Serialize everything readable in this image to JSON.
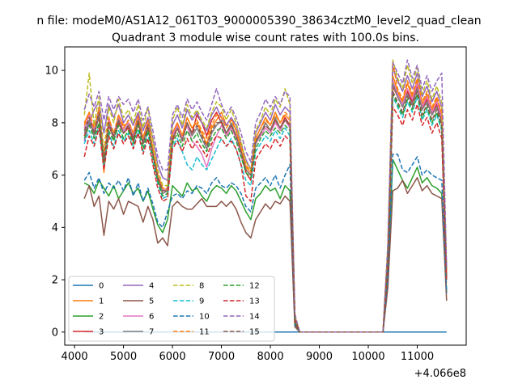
{
  "figure": {
    "suptitle": "n file: modeM0/AS1A12_061T03_9000005390_38634cztM0_level2_quad_clean",
    "title": "Quadrant 3 module wise count rates with 100.0s bins."
  },
  "chart_data": {
    "type": "line",
    "title": "Quadrant 3 module wise count rates with 100.0s bins.",
    "xlabel": "",
    "ylabel": "",
    "x_offset_label": "+4.066e8",
    "xlim": [
      3800,
      12000
    ],
    "ylim": [
      -0.5,
      10.9
    ],
    "xticks": [
      4000,
      5000,
      6000,
      7000,
      8000,
      9000,
      10000,
      11000
    ],
    "xtick_labels": [
      "4000",
      "5000",
      "6000",
      "7000",
      "8000",
      "9000",
      "10000",
      "11000"
    ],
    "yticks": [
      0,
      2,
      4,
      6,
      8,
      10
    ],
    "ytick_labels": [
      "0",
      "2",
      "4",
      "6",
      "8",
      "10"
    ],
    "grid": false,
    "legend_position": "lower-left",
    "legend_columns": 4,
    "x": [
      4200,
      4300,
      4400,
      4500,
      4600,
      4700,
      4800,
      4900,
      5000,
      5100,
      5200,
      5300,
      5400,
      5500,
      5600,
      5700,
      5800,
      5900,
      6000,
      6100,
      6200,
      6300,
      6400,
      6500,
      6600,
      6700,
      6800,
      6900,
      7000,
      7100,
      7200,
      7300,
      7400,
      7500,
      7600,
      7700,
      7800,
      7900,
      8000,
      8100,
      8200,
      8300,
      8400,
      8500,
      8600,
      10300,
      10400,
      10500,
      10600,
      10700,
      10800,
      10900,
      11000,
      11100,
      11200,
      11300,
      11400,
      11500,
      11600
    ],
    "series": [
      {
        "name": "0",
        "color": "#1f77b4",
        "dash": "solid",
        "values": [
          0,
          0,
          0,
          0,
          0,
          0,
          0,
          0,
          0,
          0,
          0,
          0,
          0,
          0,
          0,
          0,
          0,
          0,
          0,
          0,
          0,
          0,
          0,
          0,
          0,
          0,
          0,
          0,
          0,
          0,
          0,
          0,
          0,
          0,
          0,
          0,
          0,
          0,
          0,
          0,
          0,
          0,
          0,
          0,
          0,
          0,
          0,
          0,
          0,
          0,
          0,
          0,
          0,
          0,
          0,
          0,
          0,
          0,
          0
        ]
      },
      {
        "name": "1",
        "color": "#ff7f0e",
        "dash": "solid",
        "values": [
          8.0,
          8.4,
          7.6,
          8.6,
          6.1,
          8.2,
          7.5,
          8.3,
          7.9,
          8.0,
          7.6,
          8.3,
          7.4,
          8.1,
          7.0,
          6.0,
          5.5,
          5.4,
          7.6,
          8.0,
          7.5,
          8.2,
          7.8,
          8.0,
          7.6,
          7.2,
          7.8,
          8.1,
          8.4,
          7.9,
          8.2,
          7.7,
          7.0,
          6.3,
          6.1,
          7.4,
          7.8,
          8.2,
          7.9,
          8.4,
          8.0,
          8.3,
          8.1,
          0.6,
          0,
          0,
          3.0,
          9.8,
          9.2,
          8.8,
          9.5,
          9.0,
          9.6,
          8.7,
          9.1,
          8.5,
          8.9,
          8.3,
          2.2
        ]
      },
      {
        "name": "2",
        "color": "#2ca02c",
        "dash": "solid",
        "values": [
          5.7,
          5.6,
          5.3,
          5.8,
          5.5,
          5.2,
          5.6,
          5.1,
          5.4,
          5.7,
          5.3,
          5.5,
          5.0,
          5.4,
          4.7,
          4.1,
          3.8,
          4.3,
          5.6,
          5.4,
          5.2,
          5.7,
          5.4,
          5.5,
          5.2,
          5.0,
          5.4,
          5.6,
          5.5,
          5.3,
          5.6,
          5.4,
          5.0,
          4.6,
          4.3,
          5.1,
          5.3,
          5.6,
          5.4,
          5.5,
          5.1,
          5.6,
          5.4,
          0.3,
          0,
          0,
          2.0,
          6.6,
          6.2,
          5.8,
          5.5,
          5.9,
          6.3,
          5.7,
          5.9,
          5.6,
          5.5,
          5.3,
          1.5
        ]
      },
      {
        "name": "3",
        "color": "#d62728",
        "dash": "solid",
        "values": [
          7.5,
          8.0,
          7.6,
          8.2,
          6.5,
          7.9,
          7.4,
          8.0,
          7.6,
          7.8,
          7.3,
          8.0,
          7.2,
          7.8,
          6.8,
          5.8,
          5.3,
          5.4,
          7.3,
          7.8,
          7.4,
          8.0,
          7.6,
          8.3,
          8.0,
          7.5,
          8.1,
          8.4,
          8.0,
          7.6,
          7.9,
          7.5,
          6.8,
          6.1,
          5.8,
          7.3,
          7.6,
          8.0,
          7.7,
          8.1,
          7.8,
          8.2,
          7.9,
          0.5,
          0,
          0,
          2.8,
          9.4,
          9.0,
          8.6,
          9.2,
          8.8,
          9.4,
          8.5,
          8.9,
          8.3,
          8.7,
          8.1,
          2.1
        ]
      },
      {
        "name": "4",
        "color": "#9467bd",
        "dash": "solid",
        "values": [
          7.3,
          8.0,
          8.5,
          8.8,
          7.6,
          8.7,
          8.2,
          8.7,
          8.0,
          8.3,
          7.9,
          8.4,
          7.7,
          8.2,
          7.4,
          6.4,
          5.9,
          5.8,
          7.9,
          8.3,
          7.8,
          8.5,
          8.1,
          8.4,
          8.0,
          7.7,
          8.3,
          8.6,
          8.2,
          7.9,
          8.2,
          7.9,
          7.2,
          6.6,
          6.2,
          7.6,
          8.0,
          8.4,
          8.1,
          8.7,
          8.3,
          8.6,
          8.4,
          0.6,
          0,
          0,
          3.2,
          10.1,
          9.6,
          9.2,
          9.8,
          9.3,
          9.9,
          9.0,
          9.4,
          8.8,
          9.2,
          8.6,
          2.3
        ]
      },
      {
        "name": "5",
        "color": "#8c564b",
        "dash": "solid",
        "values": [
          5.1,
          5.6,
          4.8,
          5.2,
          3.7,
          5.0,
          4.7,
          5.1,
          4.5,
          5.0,
          4.9,
          4.8,
          4.2,
          4.8,
          4.3,
          3.4,
          3.6,
          3.3,
          4.8,
          5.0,
          4.8,
          4.7,
          4.7,
          4.9,
          5.1,
          4.8,
          4.8,
          4.8,
          5.0,
          4.8,
          5.0,
          4.7,
          4.2,
          3.8,
          3.6,
          4.3,
          4.6,
          4.9,
          4.7,
          5.0,
          4.9,
          5.2,
          5.0,
          0.2,
          0,
          0,
          1.7,
          5.4,
          5.5,
          5.8,
          5.3,
          5.6,
          5.9,
          5.4,
          5.6,
          5.3,
          5.2,
          5.1,
          1.2
        ]
      },
      {
        "name": "6",
        "color": "#e377c2",
        "dash": "solid",
        "values": [
          7.8,
          8.3,
          7.7,
          8.5,
          6.6,
          8.1,
          7.6,
          8.2,
          7.7,
          8.0,
          7.5,
          8.2,
          7.3,
          8.0,
          6.9,
          6.0,
          5.4,
          5.5,
          7.5,
          7.9,
          7.4,
          7.9,
          7.3,
          7.1,
          6.8,
          6.3,
          7.0,
          7.5,
          7.9,
          7.5,
          7.8,
          7.4,
          6.8,
          6.2,
          6.0,
          7.2,
          7.5,
          7.8,
          7.6,
          8.0,
          7.7,
          8.1,
          7.8,
          0.5,
          0,
          0,
          2.9,
          9.6,
          9.1,
          8.7,
          9.3,
          8.9,
          9.5,
          8.6,
          9.0,
          8.4,
          8.8,
          8.2,
          2.2
        ]
      },
      {
        "name": "7",
        "color": "#7f7f7f",
        "dash": "solid",
        "values": [
          7.6,
          8.1,
          7.5,
          8.3,
          6.4,
          8.0,
          7.4,
          8.1,
          7.6,
          7.9,
          7.4,
          8.1,
          7.2,
          7.9,
          6.8,
          5.9,
          5.3,
          5.4,
          7.4,
          7.8,
          7.3,
          8.0,
          7.5,
          7.8,
          7.4,
          7.0,
          7.6,
          7.9,
          8.1,
          7.6,
          8.0,
          7.5,
          6.9,
          6.2,
          6.0,
          7.2,
          7.6,
          8.0,
          7.7,
          8.2,
          7.8,
          8.1,
          7.9,
          0.5,
          0,
          0,
          2.7,
          9.5,
          9.0,
          8.6,
          9.1,
          8.7,
          9.3,
          8.5,
          8.8,
          8.3,
          8.6,
          8.0,
          2.1
        ]
      },
      {
        "name": "8",
        "color": "#bcbd22",
        "dash": "dashed",
        "values": [
          8.3,
          9.9,
          7.9,
          9.0,
          6.9,
          8.6,
          8.0,
          8.9,
          8.2,
          8.5,
          8.0,
          8.7,
          7.8,
          8.6,
          7.3,
          6.2,
          5.6,
          5.6,
          8.1,
          8.6,
          7.9,
          8.7,
          8.2,
          8.5,
          8.1,
          7.8,
          8.4,
          8.8,
          8.6,
          8.1,
          8.5,
          8.0,
          7.3,
          6.5,
          6.2,
          7.7,
          8.1,
          8.6,
          8.3,
          8.9,
          8.6,
          9.3,
          8.7,
          0.6,
          0,
          0,
          3.3,
          10.4,
          9.7,
          9.3,
          10.2,
          9.5,
          10.1,
          9.1,
          9.6,
          8.9,
          9.4,
          8.8,
          2.4
        ]
      },
      {
        "name": "9",
        "color": "#17becf",
        "dash": "dashed",
        "values": [
          7.2,
          7.7,
          7.2,
          7.9,
          6.3,
          7.6,
          7.1,
          7.7,
          7.3,
          7.6,
          7.1,
          7.7,
          6.9,
          7.6,
          6.5,
          5.7,
          5.1,
          5.2,
          7.1,
          7.4,
          6.9,
          6.4,
          6.2,
          6.7,
          6.4,
          6.2,
          6.6,
          7.0,
          7.4,
          7.1,
          7.4,
          7.0,
          6.4,
          5.8,
          5.6,
          6.9,
          7.2,
          7.5,
          7.3,
          7.7,
          7.4,
          7.8,
          7.5,
          0.4,
          0,
          0,
          2.6,
          9.0,
          8.6,
          8.2,
          8.8,
          8.4,
          9.0,
          8.1,
          8.5,
          7.9,
          8.3,
          7.7,
          2.0
        ]
      },
      {
        "name": "10",
        "color": "#1f77b4",
        "dash": "dashed",
        "values": [
          5.8,
          6.1,
          5.5,
          5.9,
          5.3,
          5.7,
          5.5,
          5.8,
          5.4,
          5.9,
          5.2,
          5.7,
          5.0,
          5.5,
          4.9,
          4.2,
          4.0,
          4.6,
          5.2,
          5.3,
          5.1,
          5.4,
          5.3,
          5.6,
          5.5,
          5.3,
          5.7,
          5.9,
          5.6,
          5.5,
          5.7,
          5.6,
          5.3,
          4.8,
          4.6,
          5.5,
          5.7,
          5.9,
          5.6,
          6.0,
          5.5,
          6.0,
          6.4,
          0.3,
          0,
          0,
          2.1,
          6.8,
          6.8,
          6.2,
          6.1,
          6.4,
          6.7,
          6.0,
          6.2,
          6.0,
          5.9,
          5.8,
          1.5
        ]
      },
      {
        "name": "11",
        "color": "#ff7f0e",
        "dash": "dashed",
        "values": [
          7.9,
          8.4,
          7.8,
          8.5,
          6.7,
          8.2,
          7.6,
          8.3,
          7.8,
          8.1,
          7.6,
          8.2,
          7.4,
          8.1,
          7.0,
          6.0,
          5.5,
          5.5,
          7.6,
          8.0,
          7.5,
          8.2,
          7.8,
          8.1,
          7.7,
          7.4,
          7.9,
          8.3,
          8.2,
          7.8,
          8.1,
          7.7,
          7.1,
          6.4,
          6.1,
          7.4,
          7.8,
          8.1,
          7.9,
          8.3,
          8.0,
          8.4,
          8.2,
          0.6,
          0,
          0,
          3.0,
          10.3,
          9.3,
          8.9,
          9.6,
          9.1,
          9.7,
          8.8,
          9.2,
          8.6,
          9.0,
          8.4,
          2.2
        ]
      },
      {
        "name": "12",
        "color": "#2ca02c",
        "dash": "dashed",
        "values": [
          7.4,
          7.9,
          7.4,
          8.0,
          6.5,
          7.7,
          7.3,
          7.9,
          7.4,
          7.7,
          7.2,
          7.9,
          7.0,
          7.7,
          6.7,
          5.8,
          5.2,
          5.3,
          7.2,
          7.6,
          7.1,
          7.7,
          7.3,
          7.6,
          7.2,
          6.9,
          7.4,
          7.7,
          7.8,
          7.4,
          7.7,
          7.3,
          6.7,
          6.1,
          5.9,
          7.0,
          7.4,
          7.7,
          7.5,
          7.8,
          7.6,
          7.9,
          7.7,
          0.4,
          0,
          0,
          2.7,
          9.1,
          8.7,
          8.3,
          8.9,
          8.5,
          9.1,
          8.2,
          8.6,
          8.0,
          8.4,
          7.8,
          2.0
        ]
      },
      {
        "name": "13",
        "color": "#d62728",
        "dash": "dashed",
        "values": [
          6.7,
          7.5,
          7.1,
          7.8,
          6.2,
          7.5,
          7.0,
          7.6,
          7.2,
          7.5,
          7.0,
          7.6,
          6.8,
          7.4,
          6.4,
          5.5,
          5.0,
          5.1,
          7.0,
          7.3,
          6.9,
          7.4,
          7.0,
          7.3,
          7.0,
          6.7,
          7.2,
          7.5,
          7.4,
          7.1,
          7.3,
          7.0,
          6.4,
          5.2,
          5.0,
          6.6,
          6.9,
          7.2,
          7.0,
          7.4,
          7.1,
          7.5,
          7.3,
          0.4,
          0,
          0,
          2.5,
          8.6,
          8.3,
          7.9,
          8.5,
          8.1,
          8.7,
          7.9,
          8.2,
          7.6,
          8.0,
          7.4,
          1.9
        ]
      },
      {
        "name": "14",
        "color": "#9467bd",
        "dash": "dashed",
        "values": [
          8.5,
          9.1,
          8.6,
          9.2,
          8.1,
          9.0,
          8.5,
          9.0,
          8.7,
          8.9,
          8.4,
          8.9,
          8.1,
          8.6,
          7.7,
          6.7,
          6.2,
          6.2,
          8.3,
          8.7,
          8.2,
          8.9,
          8.5,
          8.8,
          8.4,
          8.1,
          8.7,
          9.3,
          8.7,
          8.3,
          8.6,
          8.2,
          7.6,
          6.9,
          6.5,
          8.0,
          8.4,
          8.9,
          8.6,
          9.0,
          8.7,
          9.2,
          9.0,
          0.7,
          0,
          0,
          3.4,
          10.3,
          9.9,
          9.5,
          10.4,
          9.7,
          10.2,
          9.3,
          9.8,
          9.2,
          9.6,
          9.9,
          2.5
        ]
      },
      {
        "name": "15",
        "color": "#8c564b",
        "dash": "dashed",
        "values": [
          7.7,
          8.2,
          7.6,
          8.4,
          6.6,
          8.0,
          7.5,
          8.1,
          7.6,
          7.9,
          7.4,
          8.1,
          7.2,
          7.9,
          6.8,
          5.9,
          5.4,
          5.4,
          7.4,
          7.8,
          7.3,
          8.0,
          7.6,
          7.9,
          7.5,
          7.1,
          7.7,
          8.0,
          8.0,
          7.6,
          7.9,
          7.5,
          6.9,
          6.2,
          6.0,
          7.3,
          7.6,
          7.9,
          7.7,
          8.1,
          7.8,
          8.1,
          7.9,
          0.5,
          0,
          0,
          2.8,
          9.2,
          8.8,
          8.4,
          9.0,
          8.6,
          9.2,
          8.3,
          8.7,
          8.1,
          8.5,
          7.9,
          2.0
        ]
      }
    ]
  }
}
